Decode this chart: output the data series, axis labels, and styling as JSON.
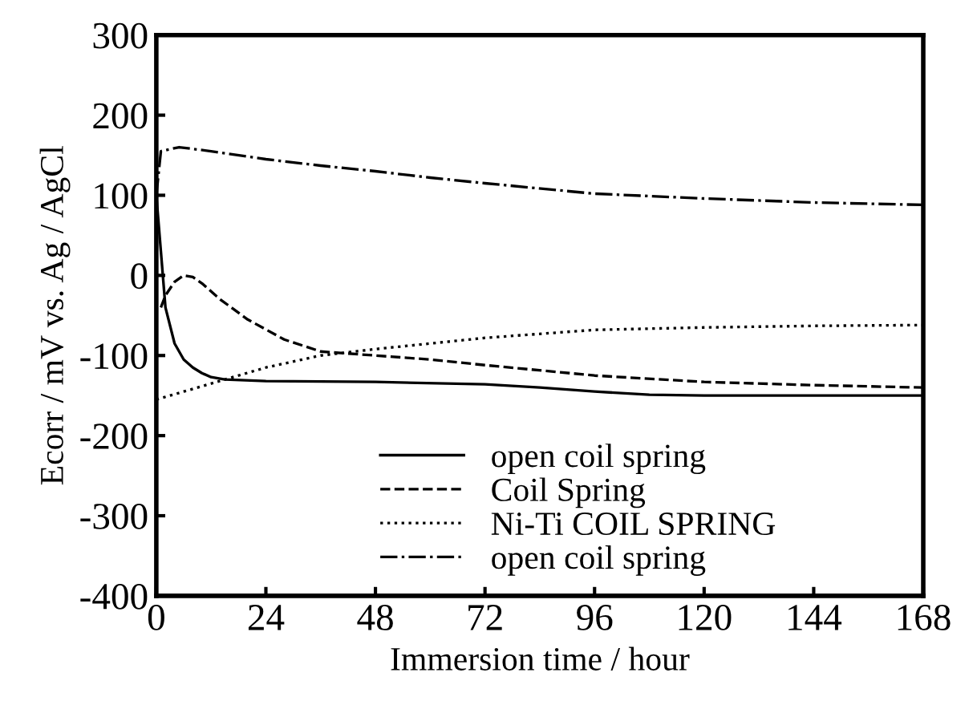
{
  "chart_data": {
    "type": "line",
    "xlabel": "Immersion time / hour",
    "ylabel": "Ecorr / mV vs. Ag / AgCl",
    "xlim": [
      0,
      168
    ],
    "xticks": [
      0,
      24,
      48,
      72,
      96,
      120,
      144,
      168
    ],
    "ylim": [
      -400,
      300
    ],
    "yticks": [
      -400,
      -300,
      -200,
      -100,
      0,
      100,
      200,
      300
    ],
    "grid": false,
    "legend": "bottom",
    "marker": "none",
    "series": [
      {
        "name": "open coil spring",
        "color": "#000000",
        "line_style": "solid",
        "x": [
          0,
          1,
          2,
          4,
          6,
          8,
          10,
          12,
          15,
          24,
          48,
          72,
          84,
          96,
          108,
          120,
          144,
          168
        ],
        "values": [
          100,
          30,
          -40,
          -85,
          -105,
          -115,
          -122,
          -127,
          -130,
          -132,
          -133,
          -136,
          -140,
          -145,
          -149,
          -150,
          -150,
          -150
        ]
      },
      {
        "name": "Coil Spring",
        "color": "#000000",
        "line_style": "dashed",
        "x": [
          1,
          2,
          4,
          6,
          8,
          10,
          14,
          20,
          28,
          36,
          48,
          60,
          72,
          96,
          120,
          144,
          168
        ],
        "values": [
          -40,
          -25,
          -8,
          0,
          -2,
          -10,
          -30,
          -55,
          -80,
          -95,
          -100,
          -105,
          -112,
          -125,
          -133,
          -137,
          -140
        ]
      },
      {
        "name": "Ni-Ti COIL SPRING",
        "color": "#000000",
        "line_style": "dotted",
        "x": [
          0,
          6,
          15,
          24,
          36,
          48,
          60,
          72,
          96,
          120,
          144,
          168
        ],
        "values": [
          -155,
          -145,
          -130,
          -115,
          -100,
          -92,
          -85,
          -78,
          -68,
          -65,
          -63,
          -62
        ]
      },
      {
        "name": "open coil spring",
        "color": "#000000",
        "line_style": "dashdot",
        "x": [
          0,
          1,
          5,
          12,
          24,
          36,
          48,
          60,
          72,
          96,
          120,
          144,
          168
        ],
        "values": [
          100,
          155,
          160,
          155,
          145,
          137,
          130,
          122,
          115,
          102,
          96,
          91,
          88
        ]
      }
    ]
  }
}
